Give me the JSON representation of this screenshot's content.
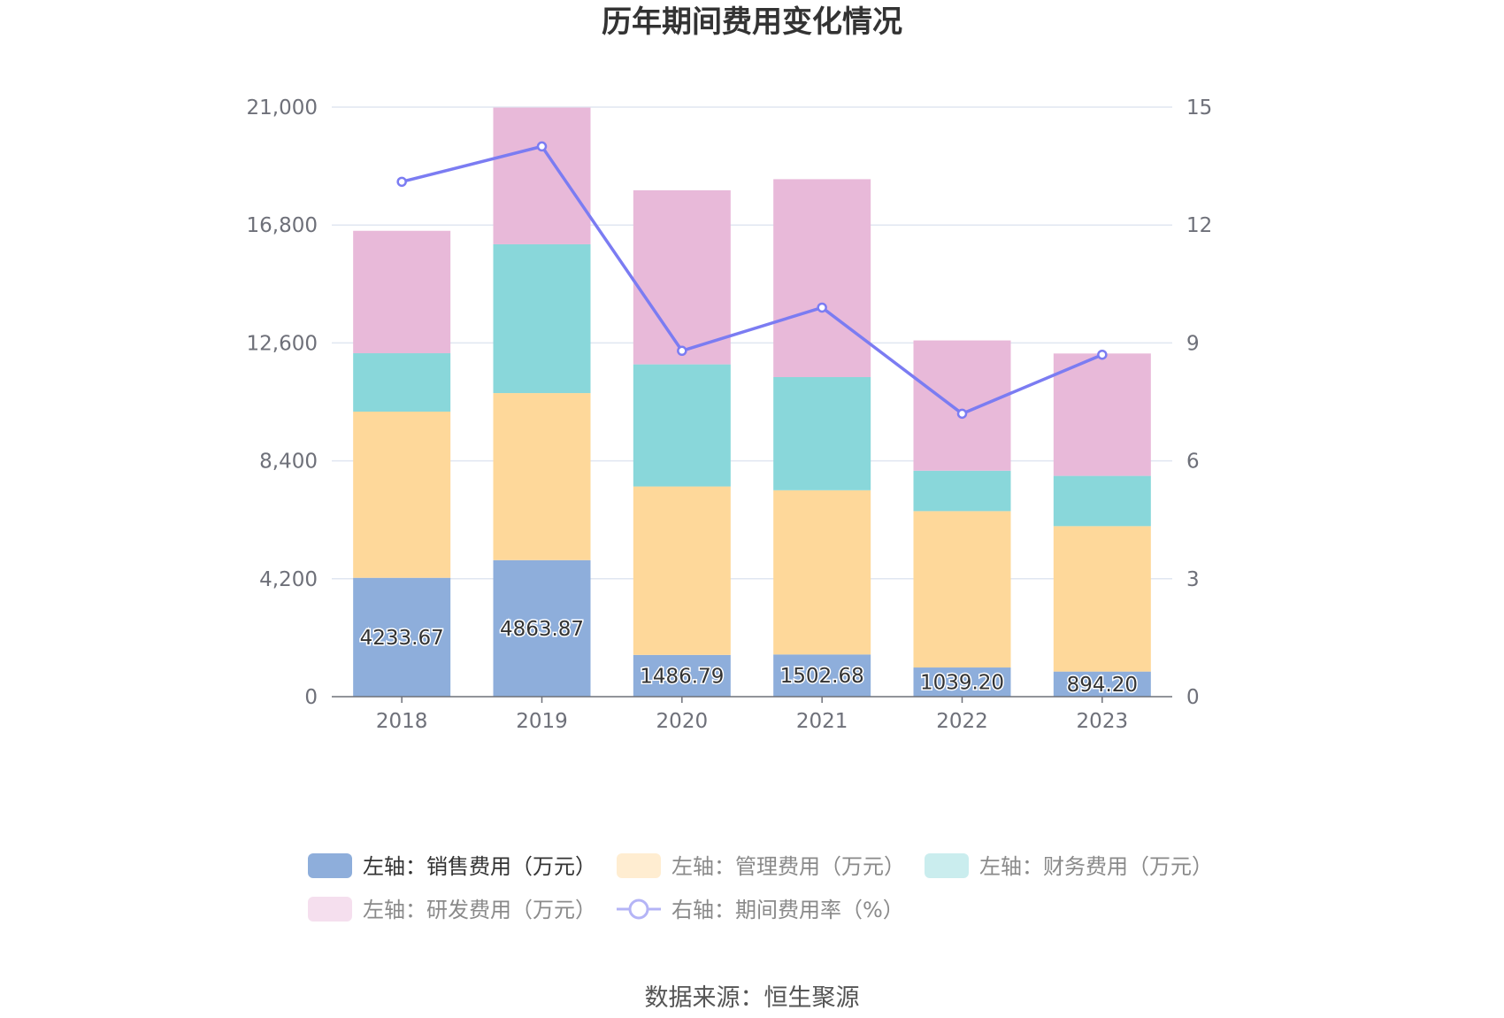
{
  "chart_data": {
    "type": "bar",
    "title": "历年期间费用变化情况",
    "categories": [
      "2018",
      "2019",
      "2020",
      "2021",
      "2022",
      "2023"
    ],
    "series": [
      {
        "name": "左轴：销售费用（万元）",
        "axis": "left",
        "color": "#8eaedb",
        "values": [
          4233.67,
          4863.87,
          1486.79,
          1502.68,
          1039.2,
          894.2
        ],
        "labels": [
          "4233.67",
          "4863.87",
          "1486.79",
          "1502.68",
          "1039.20",
          "894.20"
        ]
      },
      {
        "name": "左轴：管理费用（万元）",
        "axis": "left",
        "color": "#fed89a",
        "values": [
          5920,
          5950,
          6000,
          5850,
          5570,
          5180
        ]
      },
      {
        "name": "左轴：财务费用（万元）",
        "axis": "left",
        "color": "#89d7da",
        "values": [
          2080,
          5300,
          4350,
          4030,
          1440,
          1790
        ]
      },
      {
        "name": "左轴：研发费用（万元）",
        "axis": "left",
        "color": "#e8b9d9",
        "values": [
          4360,
          4870,
          6200,
          7050,
          4640,
          4360
        ]
      },
      {
        "name": "右轴：期间费用率（%）",
        "axis": "right",
        "type": "line",
        "color": "#7b7cf2",
        "values": [
          13.1,
          14.0,
          8.8,
          9.9,
          7.2,
          8.7
        ]
      }
    ],
    "y_left": {
      "min": 0,
      "max": 21000,
      "ticks": [
        "0",
        "4,200",
        "8,400",
        "12,600",
        "16,800",
        "21,000"
      ]
    },
    "y_right": {
      "min": 0,
      "max": 15,
      "ticks": [
        "0",
        "3",
        "6",
        "9",
        "12",
        "15"
      ]
    },
    "grid": true,
    "legend_position": "bottom"
  },
  "source": "数据来源：恒生聚源"
}
